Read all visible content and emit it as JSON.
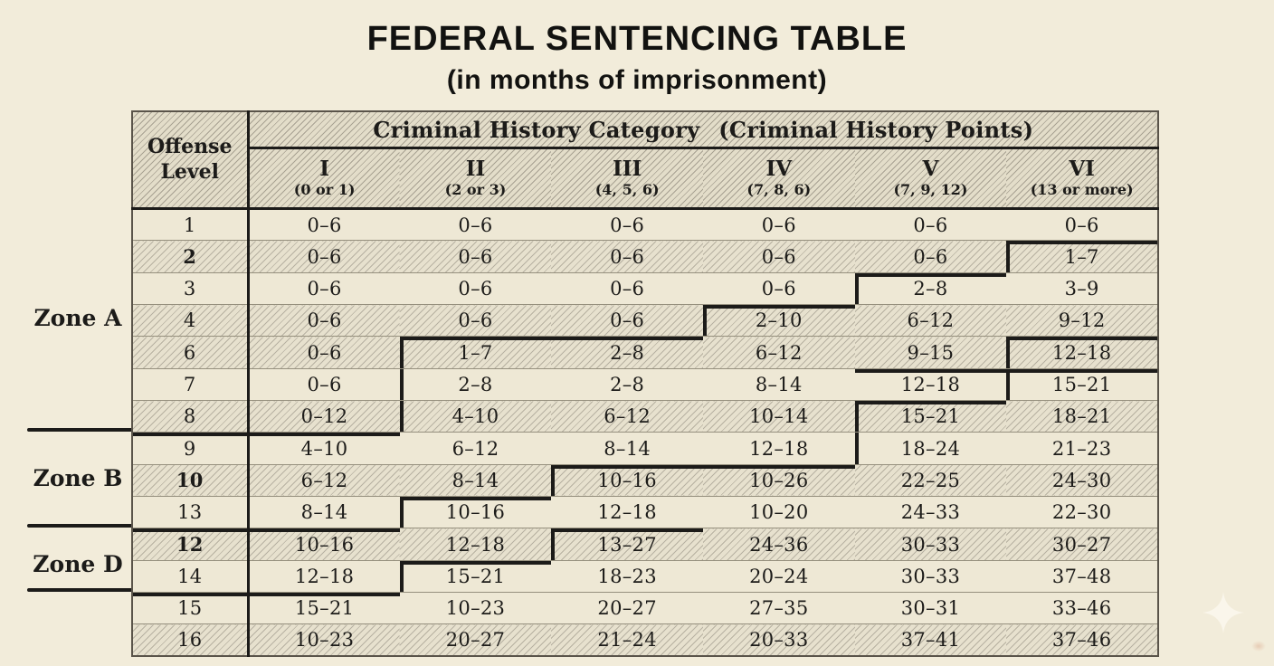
{
  "title": "FEDERAL SENTENCING TABLE",
  "subtitle": "(in months of imprisonment)",
  "colors": {
    "paper": "#f2ecda",
    "ink": "#1c1b19",
    "plain_row": "#eee8d5",
    "hatched_row": "#e7e1ce"
  },
  "table": {
    "corner": {
      "line1": "Offense",
      "line2": "Level"
    },
    "group_header": "Criminal History Category  (Criminal History Points)",
    "columns": [
      {
        "numeral": "I",
        "points": "(0 or 1)"
      },
      {
        "numeral": "II",
        "points": "(2 or 3)"
      },
      {
        "numeral": "III",
        "points": "(4, 5, 6)"
      },
      {
        "numeral": "IV",
        "points": "(7, 8, 6)"
      },
      {
        "numeral": "V",
        "points": "(7, 9, 12)"
      },
      {
        "numeral": "VI",
        "points": "(13 or more)"
      }
    ],
    "rows": [
      {
        "level": "1",
        "bold_level": false,
        "hatched": false,
        "values": [
          "0–6",
          "0–6",
          "0–6",
          "0–6",
          "0–6",
          "0–6"
        ]
      },
      {
        "level": "2",
        "bold_level": true,
        "hatched": true,
        "values": [
          "0–6",
          "0–6",
          "0–6",
          "0–6",
          "0–6",
          "1–7"
        ]
      },
      {
        "level": "3",
        "bold_level": false,
        "hatched": false,
        "values": [
          "0–6",
          "0–6",
          "0–6",
          "0–6",
          "2–8",
          "3–9"
        ]
      },
      {
        "level": "4",
        "bold_level": false,
        "hatched": true,
        "values": [
          "0–6",
          "0–6",
          "0–6",
          "2–10",
          "6–12",
          "9–12"
        ]
      },
      {
        "level": "6",
        "bold_level": false,
        "hatched": true,
        "values": [
          "0–6",
          "1–7",
          "2–8",
          "6–12",
          "9–15",
          "12–18"
        ]
      },
      {
        "level": "7",
        "bold_level": false,
        "hatched": false,
        "values": [
          "0–6",
          "2–8",
          "2–8",
          "8–14",
          "12–18",
          "15–21"
        ]
      },
      {
        "level": "8",
        "bold_level": false,
        "hatched": true,
        "values": [
          "0–12",
          "4–10",
          "6–12",
          "10–14",
          "15–21",
          "18–21"
        ]
      },
      {
        "level": "9",
        "bold_level": false,
        "hatched": false,
        "values": [
          "4–10",
          "6–12",
          "8–14",
          "12–18",
          "18–24",
          "21–23"
        ]
      },
      {
        "level": "10",
        "bold_level": true,
        "hatched": true,
        "values": [
          "6–12",
          "8–14",
          "10–16",
          "10–26",
          "22–25",
          "24–30"
        ]
      },
      {
        "level": "13",
        "bold_level": false,
        "hatched": false,
        "values": [
          "8–14",
          "10–16",
          "12–18",
          "10–20",
          "24–33",
          "22–30"
        ]
      },
      {
        "level": "12",
        "bold_level": true,
        "hatched": true,
        "values": [
          "10–16",
          "12–18",
          "13–27",
          "24–36",
          "30–33",
          "30–27"
        ]
      },
      {
        "level": "14",
        "bold_level": false,
        "hatched": false,
        "values": [
          "12–18",
          "15–21",
          "18–23",
          "20–24",
          "30–33",
          "37–48"
        ]
      },
      {
        "level": "15",
        "bold_level": false,
        "hatched": false,
        "values": [
          "15–21",
          "10–23",
          "20–27",
          "27–35",
          "30–31",
          "33–46"
        ]
      },
      {
        "level": "16",
        "bold_level": false,
        "hatched": true,
        "values": [
          "10–23",
          "20–27",
          "21–24",
          "20–33",
          "37–41",
          "37–46"
        ]
      }
    ],
    "zone_boundary_segments": [
      {
        "row": 1,
        "col": 6,
        "edges": "TL"
      },
      {
        "row": 2,
        "col": 5,
        "edges": "TL"
      },
      {
        "row": 3,
        "col": 4,
        "edges": "TL"
      },
      {
        "row": 4,
        "col": 2,
        "edges": "TL"
      },
      {
        "row": 4,
        "col": 3,
        "edges": "T"
      },
      {
        "row": 5,
        "col": 2,
        "edges": "L"
      },
      {
        "row": 6,
        "col": 2,
        "edges": "L"
      },
      {
        "row": 7,
        "col": 0,
        "edges": "T"
      },
      {
        "row": 7,
        "col": 1,
        "edges": "T"
      },
      {
        "row": 4,
        "col": 6,
        "edges": "TL"
      },
      {
        "row": 5,
        "col": 5,
        "edges": "T"
      },
      {
        "row": 5,
        "col": 6,
        "edges": "TL"
      },
      {
        "row": 6,
        "col": 5,
        "edges": "TL"
      },
      {
        "row": 7,
        "col": 5,
        "edges": "L"
      },
      {
        "row": 8,
        "col": 3,
        "edges": "TL"
      },
      {
        "row": 8,
        "col": 4,
        "edges": "T"
      },
      {
        "row": 9,
        "col": 2,
        "edges": "TL"
      },
      {
        "row": 10,
        "col": 0,
        "edges": "T"
      },
      {
        "row": 10,
        "col": 1,
        "edges": "T"
      },
      {
        "row": 10,
        "col": 3,
        "edges": "TL"
      },
      {
        "row": 11,
        "col": 2,
        "edges": "TL"
      },
      {
        "row": 12,
        "col": 0,
        "edges": "T"
      },
      {
        "row": 12,
        "col": 1,
        "edges": "T"
      }
    ],
    "zones": [
      {
        "label": "Zone A"
      },
      {
        "label": "Zone B"
      },
      {
        "label": "Zone D"
      }
    ]
  },
  "decorations": {
    "sparkle_icon": "four-pointed-sparkle",
    "sparkle_color": "#fbf7ec"
  }
}
